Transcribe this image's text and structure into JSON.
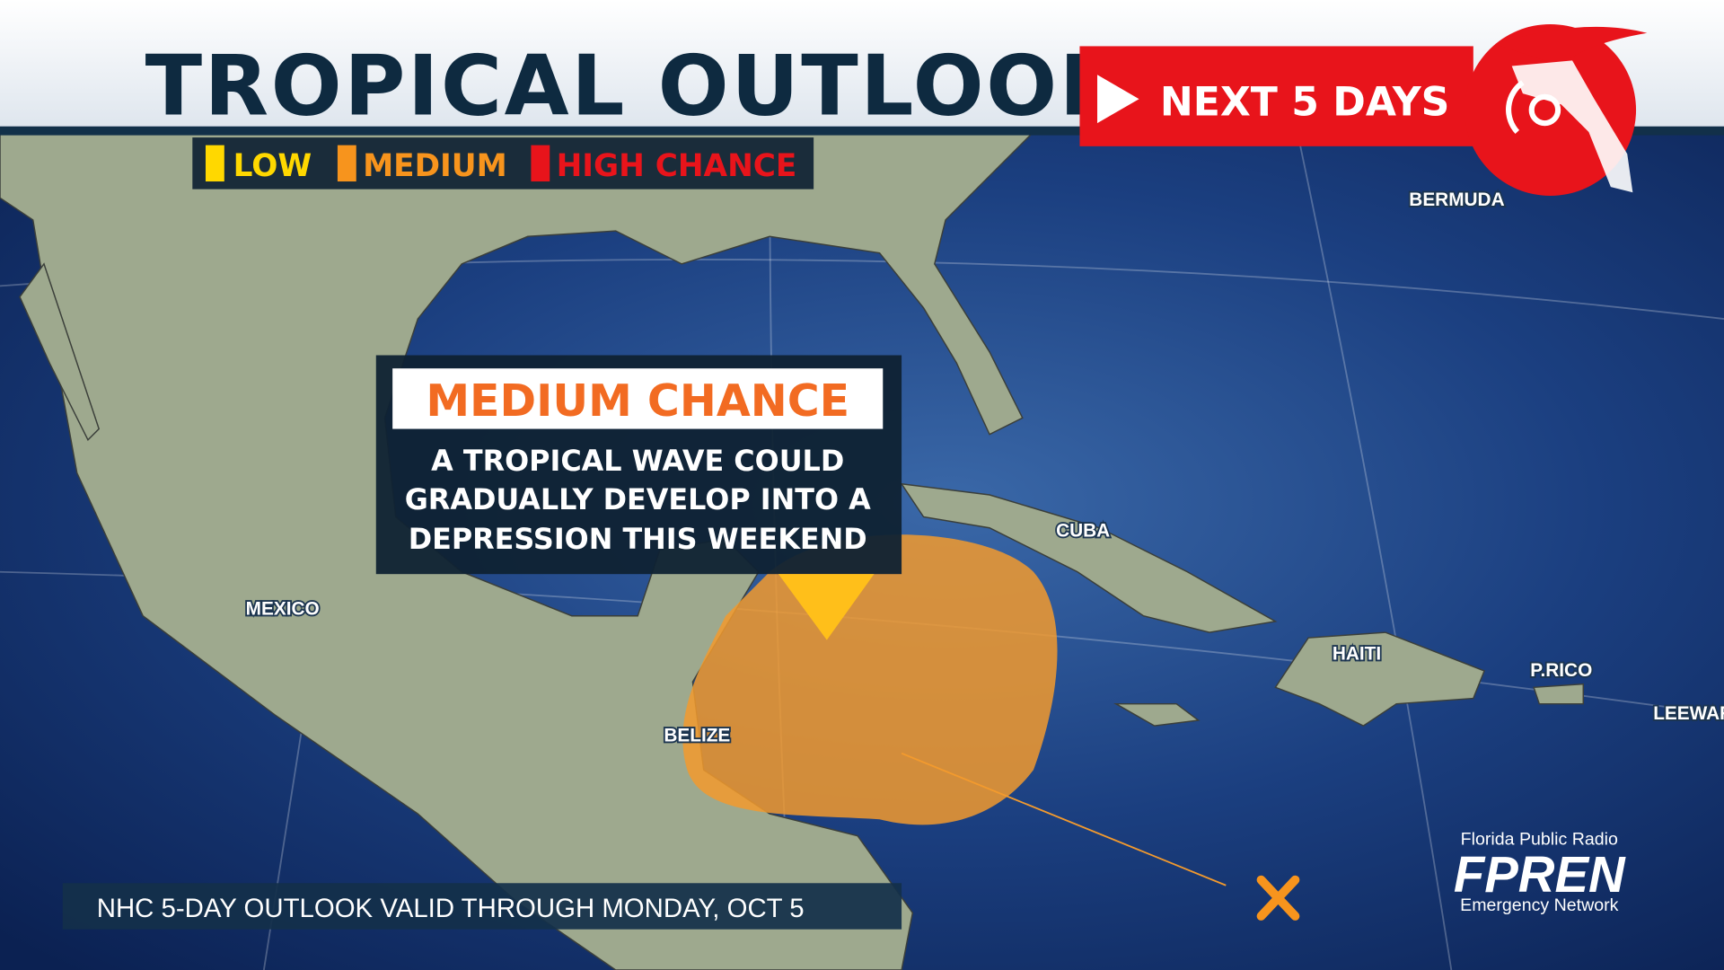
{
  "header": {
    "title": "TROPICAL OUTLOOK",
    "badge": "NEXT 5 DAYS"
  },
  "legend": {
    "items": [
      "LOW",
      "MEDIUM",
      "HIGH CHANCE"
    ]
  },
  "callout": {
    "heading": "MEDIUM CHANCE",
    "lines": [
      "A TROPICAL WAVE COULD",
      "GRADUALLY DEVELOP INTO A",
      "DEPRESSION THIS WEEKEND"
    ]
  },
  "map_labels": [
    "BERMUDA",
    "CUBA",
    "MEXICO",
    "BELIZE",
    "HAITI",
    "P.RICO",
    "LEEWAR"
  ],
  "footer": "NHC 5-DAY OUTLOOK VALID THROUGH MONDAY, OCT 5",
  "logo": {
    "top": "Florida Public Radio",
    "name": "FPREN",
    "bottom": "Emergency Network"
  }
}
